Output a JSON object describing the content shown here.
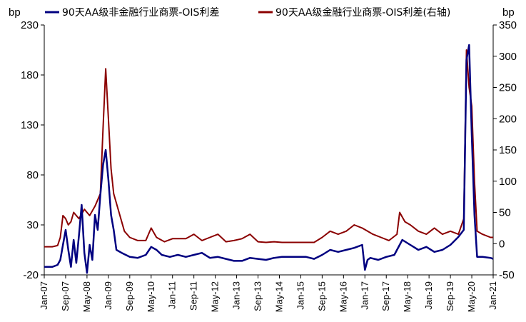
{
  "chart_data": {
    "type": "line",
    "title": "",
    "legend_position": "top",
    "grid": false,
    "left_axis": {
      "unit": "bp",
      "range": [
        -20,
        230
      ],
      "ticks": [
        "230",
        "180",
        "130",
        "80",
        "30",
        "-20"
      ]
    },
    "right_axis": {
      "unit": "bp",
      "range": [
        -50,
        350
      ],
      "ticks": [
        "350",
        "300",
        "250",
        "200",
        "150",
        "100",
        "50",
        "0",
        "-50"
      ]
    },
    "x_axis": {
      "range": [
        "2007-01",
        "2021-01"
      ],
      "tick_labels": [
        "Jan-07",
        "Sep-07",
        "May-08",
        "Jan-09",
        "Sep-09",
        "May-10",
        "Jan-11",
        "Sep-11",
        "May-12",
        "Jan-13",
        "Sep-13",
        "May-14",
        "Jan-15",
        "Sep-15",
        "May-16",
        "Jan-17",
        "Sep-17",
        "May-18",
        "Jan-19",
        "Sep-19",
        "May-20",
        "Jan-21"
      ]
    },
    "series": [
      {
        "name": "90天AA级非金融行业商票-OIS利差",
        "axis": "left",
        "color": "#000080",
        "points": [
          [
            "2007-01",
            -12
          ],
          [
            "2007-04",
            -12
          ],
          [
            "2007-06",
            -10
          ],
          [
            "2007-07",
            -5
          ],
          [
            "2007-08",
            10
          ],
          [
            "2007-09",
            25
          ],
          [
            "2007-10",
            5
          ],
          [
            "2007-11",
            -12
          ],
          [
            "2007-12",
            15
          ],
          [
            "2008-01",
            -8
          ],
          [
            "2008-02",
            20
          ],
          [
            "2008-03",
            50
          ],
          [
            "2008-04",
            2
          ],
          [
            "2008-05",
            -18
          ],
          [
            "2008-06",
            10
          ],
          [
            "2008-07",
            -5
          ],
          [
            "2008-08",
            40
          ],
          [
            "2008-09",
            25
          ],
          [
            "2008-10",
            60
          ],
          [
            "2008-11",
            90
          ],
          [
            "2008-12",
            105
          ],
          [
            "2009-01",
            75
          ],
          [
            "2009-02",
            40
          ],
          [
            "2009-03",
            25
          ],
          [
            "2009-04",
            5
          ],
          [
            "2009-06",
            2
          ],
          [
            "2009-09",
            -2
          ],
          [
            "2009-12",
            -3
          ],
          [
            "2010-03",
            0
          ],
          [
            "2010-05",
            8
          ],
          [
            "2010-07",
            5
          ],
          [
            "2010-09",
            0
          ],
          [
            "2010-12",
            -2
          ],
          [
            "2011-03",
            0
          ],
          [
            "2011-06",
            -2
          ],
          [
            "2011-09",
            0
          ],
          [
            "2011-12",
            2
          ],
          [
            "2012-03",
            -3
          ],
          [
            "2012-06",
            -2
          ],
          [
            "2012-09",
            -4
          ],
          [
            "2012-12",
            -6
          ],
          [
            "2013-03",
            -6
          ],
          [
            "2013-06",
            -3
          ],
          [
            "2013-09",
            -4
          ],
          [
            "2013-12",
            -5
          ],
          [
            "2014-03",
            -3
          ],
          [
            "2014-06",
            -2
          ],
          [
            "2014-09",
            -2
          ],
          [
            "2014-12",
            -2
          ],
          [
            "2015-03",
            -2
          ],
          [
            "2015-06",
            -4
          ],
          [
            "2015-09",
            0
          ],
          [
            "2015-12",
            5
          ],
          [
            "2016-03",
            3
          ],
          [
            "2016-06",
            5
          ],
          [
            "2016-09",
            7
          ],
          [
            "2016-12",
            10
          ],
          [
            "2017-01",
            -15
          ],
          [
            "2017-02",
            -5
          ],
          [
            "2017-03",
            -3
          ],
          [
            "2017-06",
            -5
          ],
          [
            "2017-09",
            -2
          ],
          [
            "2017-12",
            0
          ],
          [
            "2018-03",
            15
          ],
          [
            "2018-06",
            10
          ],
          [
            "2018-09",
            5
          ],
          [
            "2018-12",
            8
          ],
          [
            "2019-03",
            3
          ],
          [
            "2019-06",
            5
          ],
          [
            "2019-09",
            10
          ],
          [
            "2019-12",
            18
          ],
          [
            "2020-02",
            25
          ],
          [
            "2020-03",
            195
          ],
          [
            "2020-04",
            210
          ],
          [
            "2020-05",
            120
          ],
          [
            "2020-06",
            40
          ],
          [
            "2020-07",
            -2
          ],
          [
            "2020-09",
            -2
          ],
          [
            "2020-12",
            -3
          ],
          [
            "2021-01",
            -4
          ]
        ]
      },
      {
        "name": "90天AA级金融行业商票-OIS利差(右轴)",
        "axis": "right",
        "color": "#8B0000",
        "points": [
          [
            "2007-01",
            -5
          ],
          [
            "2007-04",
            -5
          ],
          [
            "2007-06",
            -3
          ],
          [
            "2007-07",
            10
          ],
          [
            "2007-08",
            45
          ],
          [
            "2007-09",
            40
          ],
          [
            "2007-10",
            30
          ],
          [
            "2007-11",
            35
          ],
          [
            "2007-12",
            50
          ],
          [
            "2008-02",
            40
          ],
          [
            "2008-04",
            55
          ],
          [
            "2008-06",
            45
          ],
          [
            "2008-08",
            60
          ],
          [
            "2008-10",
            80
          ],
          [
            "2008-11",
            185
          ],
          [
            "2008-12",
            280
          ],
          [
            "2009-01",
            200
          ],
          [
            "2009-02",
            120
          ],
          [
            "2009-03",
            80
          ],
          [
            "2009-05",
            50
          ],
          [
            "2009-07",
            20
          ],
          [
            "2009-09",
            10
          ],
          [
            "2009-12",
            5
          ],
          [
            "2010-03",
            5
          ],
          [
            "2010-05",
            25
          ],
          [
            "2010-07",
            10
          ],
          [
            "2010-10",
            3
          ],
          [
            "2011-01",
            8
          ],
          [
            "2011-06",
            8
          ],
          [
            "2011-09",
            15
          ],
          [
            "2011-12",
            5
          ],
          [
            "2012-03",
            10
          ],
          [
            "2012-06",
            15
          ],
          [
            "2012-09",
            3
          ],
          [
            "2012-12",
            5
          ],
          [
            "2013-03",
            8
          ],
          [
            "2013-06",
            15
          ],
          [
            "2013-09",
            3
          ],
          [
            "2013-12",
            2
          ],
          [
            "2014-03",
            3
          ],
          [
            "2014-06",
            2
          ],
          [
            "2014-09",
            2
          ],
          [
            "2014-12",
            2
          ],
          [
            "2015-03",
            2
          ],
          [
            "2015-06",
            2
          ],
          [
            "2015-09",
            10
          ],
          [
            "2015-12",
            20
          ],
          [
            "2016-03",
            15
          ],
          [
            "2016-06",
            20
          ],
          [
            "2016-09",
            30
          ],
          [
            "2016-12",
            25
          ],
          [
            "2017-02",
            20
          ],
          [
            "2017-04",
            15
          ],
          [
            "2017-07",
            10
          ],
          [
            "2017-10",
            5
          ],
          [
            "2018-01",
            15
          ],
          [
            "2018-02",
            50
          ],
          [
            "2018-04",
            35
          ],
          [
            "2018-06",
            30
          ],
          [
            "2018-09",
            20
          ],
          [
            "2018-12",
            15
          ],
          [
            "2019-03",
            25
          ],
          [
            "2019-06",
            15
          ],
          [
            "2019-09",
            20
          ],
          [
            "2019-12",
            15
          ],
          [
            "2020-02",
            40
          ],
          [
            "2020-03",
            310
          ],
          [
            "2020-04",
            250
          ],
          [
            "2020-05",
            220
          ],
          [
            "2020-06",
            100
          ],
          [
            "2020-07",
            20
          ],
          [
            "2020-09",
            15
          ],
          [
            "2020-12",
            10
          ],
          [
            "2021-01",
            10
          ]
        ]
      }
    ]
  }
}
